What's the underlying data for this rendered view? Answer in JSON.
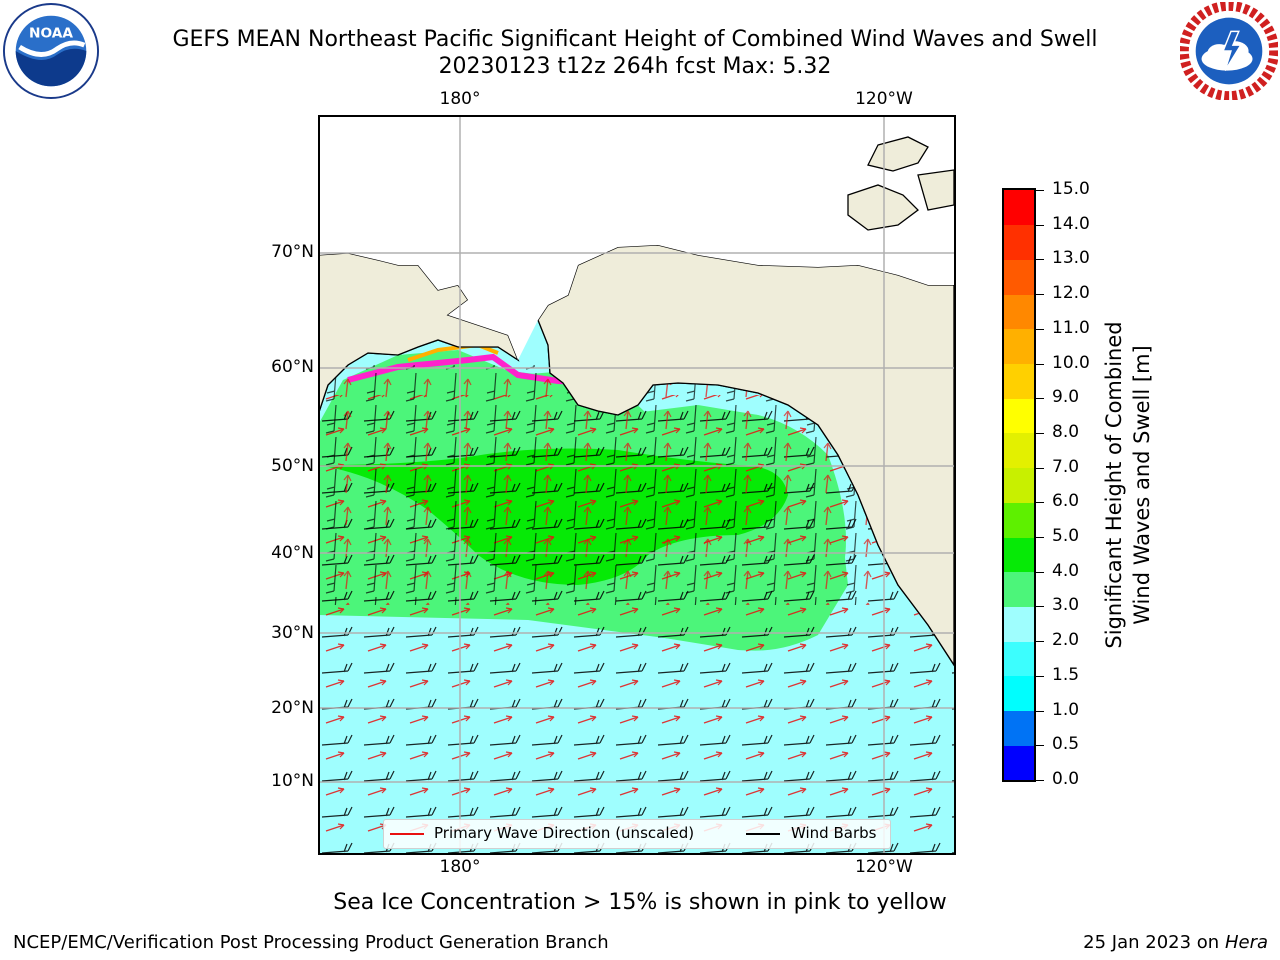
{
  "title": {
    "line1": "GEFS MEAN Northeast Pacific Significant Height of Combined Wind Waves and Swell",
    "line2": "20230123 t12z 264h fcst   Max: 5.32"
  },
  "logos": {
    "left": "noaa-logo",
    "right": "nws-logo"
  },
  "map": {
    "lat_labels": [
      "70°N",
      "60°N",
      "50°N",
      "40°N",
      "30°N",
      "20°N",
      "10°N"
    ],
    "lon_labels_top": [
      "180°",
      "120°W"
    ],
    "lon_labels_bottom": [
      "180°",
      "120°W"
    ],
    "colors": {
      "land": "#efedda",
      "wave_low": "#9ffefe",
      "wave_mid": "#4cf57a",
      "wave_high": "#06ea06",
      "arrow": "#e81010",
      "barb": "#000000",
      "grid": "#b0b0b0"
    }
  },
  "legend": {
    "wave_label": "Primary Wave Direction (unscaled)",
    "wind_label": "Wind Barbs",
    "wave_color": "#e81010",
    "wind_color": "#000000"
  },
  "colorbar": {
    "title_line1": "Significant Height of Combined",
    "title_line2": "Wind Waves and Swell [m]",
    "tick_labels": [
      "15.0",
      "14.0",
      "13.0",
      "12.0",
      "11.0",
      "10.0",
      "9.0",
      "8.0",
      "7.0",
      "6.0",
      "5.0",
      "4.0",
      "3.0",
      "2.0",
      "1.5",
      "1.0",
      "0.5",
      "0.0"
    ],
    "colors": [
      "#0000ff",
      "#0073f5",
      "#00fefe",
      "#3cfefe",
      "#9ffefe",
      "#4cf57a",
      "#06ea06",
      "#5ef000",
      "#c8f000",
      "#e3f000",
      "#ffff00",
      "#ffd000",
      "#ffb000",
      "#ff8800",
      "#ff5a00",
      "#ff3000",
      "#ff0000"
    ]
  },
  "note": "Sea Ice Concentration > 15% is shown in pink to yellow",
  "footer": {
    "left": "NCEP/EMC/Verification Post Processing Product Generation Branch",
    "date": "25 Jan 2023 on ",
    "host": "Hera"
  }
}
